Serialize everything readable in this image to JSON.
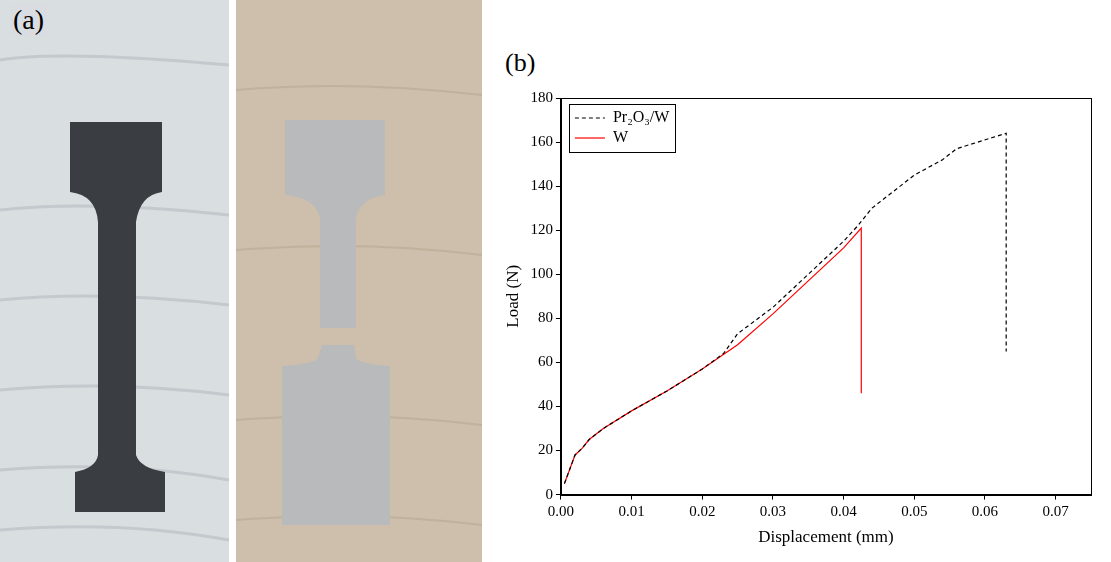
{
  "panel_labels": [
    "(a)",
    "(b)"
  ],
  "chart_data": {
    "type": "line",
    "x_label": "Displacement (mm)",
    "y_label": "Load (N)",
    "xlim": [
      0,
      0.075
    ],
    "xticks": [
      {
        "value": 0,
        "label": "0.00"
      },
      {
        "value": 0.01,
        "label": "0.01"
      },
      {
        "value": 0.02,
        "label": "0.02"
      },
      {
        "value": 0.03,
        "label": "0.03"
      },
      {
        "value": 0.04,
        "label": "0.04"
      },
      {
        "value": 0.05,
        "label": "0.05"
      },
      {
        "value": 0.06,
        "label": "0.06"
      },
      {
        "value": 0.07,
        "label": "0.07"
      }
    ],
    "ylim": [
      0,
      180
    ],
    "yticks": [
      0,
      20,
      40,
      60,
      80,
      100,
      120,
      140,
      160,
      180
    ],
    "grid": false,
    "legend": "top-left",
    "series": [
      {
        "name": "Pr₂O₃/W",
        "color": "#000000",
        "line_style": "dashed",
        "marker": "none",
        "x": [
          0.0005,
          0.002,
          0.003,
          0.004,
          0.006,
          0.01,
          0.015,
          0.02,
          0.023,
          0.025,
          0.03,
          0.035,
          0.04,
          0.042,
          0.044,
          0.05,
          0.054,
          0.056,
          0.063,
          0.063
        ],
        "values": [
          5,
          18,
          21,
          25,
          30,
          38,
          47,
          57,
          64,
          73,
          85,
          100,
          115,
          122,
          130,
          145,
          152,
          157,
          164,
          65
        ]
      },
      {
        "name": "W",
        "color": "#ff0000",
        "line_style": "solid",
        "marker": "none",
        "x": [
          0.0005,
          0.002,
          0.003,
          0.004,
          0.006,
          0.01,
          0.015,
          0.02,
          0.025,
          0.03,
          0.035,
          0.04,
          0.0425,
          0.0425
        ],
        "values": [
          5,
          18,
          21,
          25,
          30,
          38,
          47,
          57,
          68,
          82,
          97,
          112,
          121,
          46
        ]
      }
    ]
  }
}
